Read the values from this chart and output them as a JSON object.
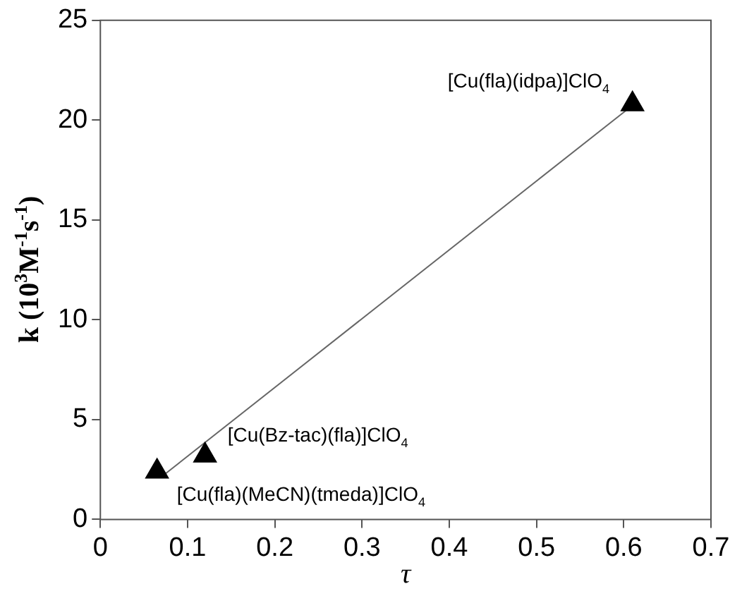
{
  "chart_data": {
    "type": "scatter",
    "xlabel": "τ",
    "ylabel": "k (10$^{3}$M$^{-1}$s$^{-1}$)",
    "xlim": [
      0,
      0.7
    ],
    "xticks": [
      0,
      0.1,
      0.2,
      0.3,
      0.4,
      0.5,
      0.6,
      0.7
    ],
    "ylim": [
      0,
      25
    ],
    "yticks": [
      0,
      5,
      10,
      15,
      20,
      25
    ],
    "grid": false,
    "legend": false,
    "marker": "triangle",
    "series": [
      {
        "type": "scatter",
        "color": "#000000",
        "x": [
          0.065,
          0.12,
          0.61
        ],
        "values": [
          2.4,
          3.2,
          20.8
        ]
      },
      {
        "type": "line",
        "color": "#666666",
        "marker": "none",
        "line_style": "solid",
        "x": [
          0.075,
          0.603
        ],
        "values": [
          2.3,
          20.5
        ]
      }
    ],
    "annotations": [
      {
        "text": "[Cu(fla)(idpa)]ClO$_{4}$",
        "x": 0.61,
        "y": 20.8
      },
      {
        "text": "[Cu(Bz-tac)(fla)]ClO$_{4}$",
        "x": 0.12,
        "y": 3.2
      },
      {
        "text": "[Cu(fla)(MeCN)(tmeda)]ClO$_{4}$",
        "x": 0.065,
        "y": 2.4
      }
    ]
  }
}
